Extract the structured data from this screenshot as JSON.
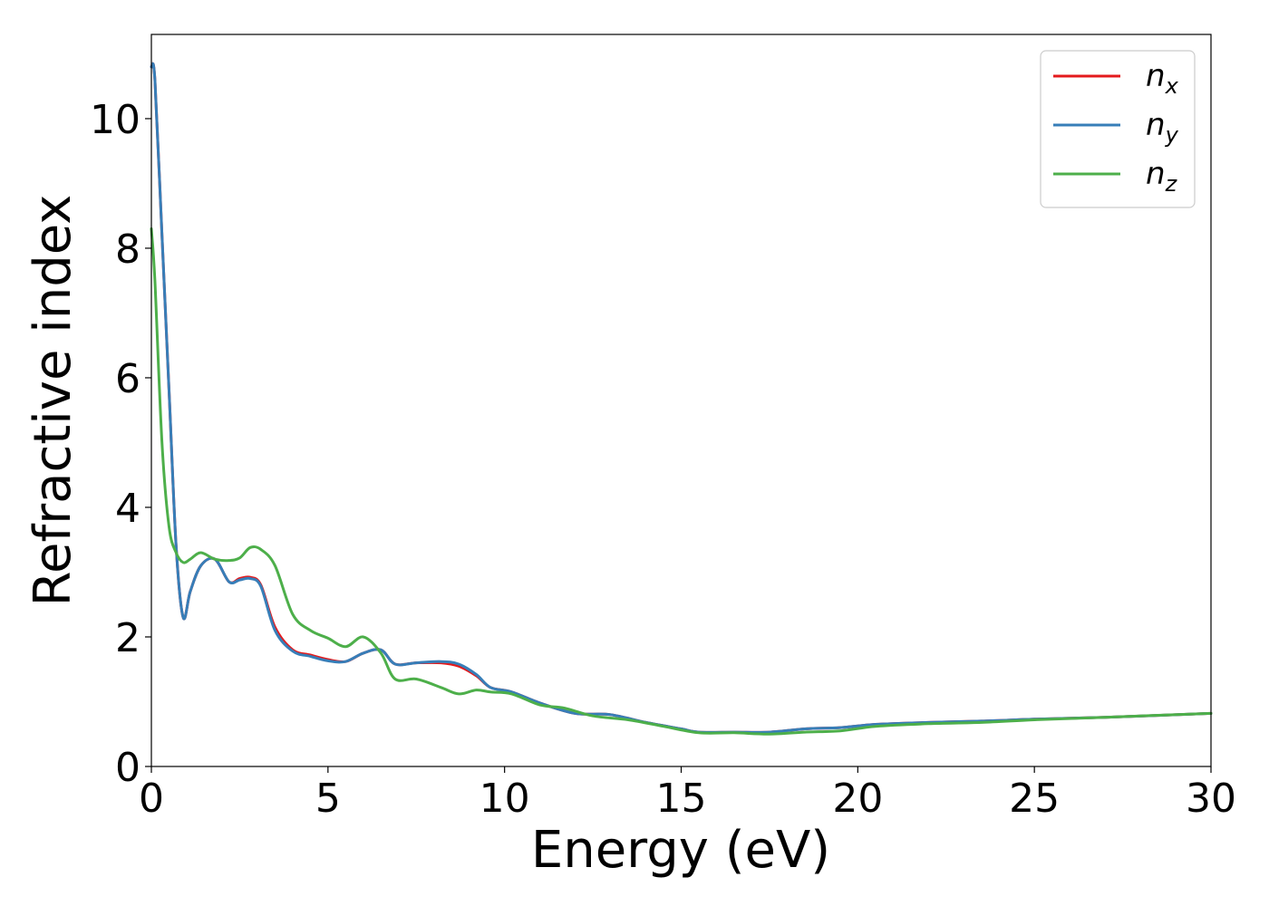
{
  "chart_data": {
    "type": "line",
    "title": "",
    "xlabel": "Energy (eV)",
    "ylabel": "Refractive index",
    "xlim": [
      0,
      30
    ],
    "ylim": [
      0,
      11.3
    ],
    "xticks": [
      0,
      5,
      10,
      15,
      20,
      25,
      30
    ],
    "yticks": [
      0,
      2,
      4,
      6,
      8,
      10
    ],
    "grid": false,
    "legend_position": "top-right",
    "series": [
      {
        "name": "n",
        "subscript": "x",
        "color": "#e41a1c",
        "x": [
          0,
          0.1,
          0.3,
          0.5,
          0.7,
          0.9,
          1.1,
          1.4,
          1.8,
          2.2,
          2.5,
          2.8,
          3.1,
          3.5,
          4.0,
          4.5,
          5.0,
          5.5,
          6.0,
          6.5,
          6.9,
          7.5,
          8.2,
          8.7,
          9.2,
          9.6,
          10.2,
          11.0,
          12.0,
          13.0,
          14.0,
          15.0,
          15.5,
          16.5,
          17.5,
          18.5,
          19.5,
          20.5,
          22.0,
          23.5,
          25.0,
          27.0,
          30.0
        ],
        "y": [
          10.8,
          10.6,
          8.2,
          5.8,
          3.4,
          2.3,
          2.7,
          3.1,
          3.2,
          2.85,
          2.9,
          2.92,
          2.8,
          2.15,
          1.8,
          1.72,
          1.65,
          1.62,
          1.75,
          1.8,
          1.58,
          1.6,
          1.6,
          1.55,
          1.4,
          1.22,
          1.15,
          0.98,
          0.82,
          0.8,
          0.68,
          0.58,
          0.53,
          0.53,
          0.53,
          0.58,
          0.6,
          0.65,
          0.68,
          0.7,
          0.73,
          0.76,
          0.82
        ]
      },
      {
        "name": "n",
        "subscript": "y",
        "color": "#377eb8",
        "x": [
          0,
          0.1,
          0.3,
          0.5,
          0.7,
          0.9,
          1.1,
          1.4,
          1.8,
          2.2,
          2.5,
          2.8,
          3.1,
          3.5,
          4.0,
          4.5,
          5.0,
          5.5,
          6.0,
          6.5,
          6.9,
          7.5,
          8.2,
          8.7,
          9.2,
          9.6,
          10.2,
          11.0,
          12.0,
          13.0,
          14.0,
          15.0,
          15.5,
          16.5,
          17.5,
          18.5,
          19.5,
          20.5,
          22.0,
          23.5,
          25.0,
          27.0,
          30.0
        ],
        "y": [
          10.8,
          10.6,
          8.2,
          5.8,
          3.4,
          2.3,
          2.7,
          3.1,
          3.2,
          2.85,
          2.88,
          2.9,
          2.78,
          2.1,
          1.78,
          1.7,
          1.63,
          1.62,
          1.75,
          1.8,
          1.58,
          1.6,
          1.62,
          1.58,
          1.42,
          1.22,
          1.15,
          0.98,
          0.82,
          0.8,
          0.68,
          0.58,
          0.53,
          0.53,
          0.53,
          0.58,
          0.6,
          0.65,
          0.68,
          0.7,
          0.73,
          0.76,
          0.82
        ]
      },
      {
        "name": "n",
        "subscript": "z",
        "color": "#4daf4a",
        "x": [
          0,
          0.1,
          0.3,
          0.5,
          0.7,
          0.9,
          1.1,
          1.4,
          1.8,
          2.2,
          2.5,
          2.8,
          3.1,
          3.5,
          4.0,
          4.5,
          5.0,
          5.5,
          6.0,
          6.5,
          6.9,
          7.5,
          8.2,
          8.7,
          9.2,
          9.6,
          10.2,
          11.0,
          11.7,
          12.5,
          13.5,
          14.5,
          15.5,
          16.5,
          17.5,
          18.5,
          19.5,
          20.5,
          22.0,
          23.5,
          25.0,
          27.0,
          30.0
        ],
        "y": [
          8.3,
          7.5,
          5.0,
          3.7,
          3.3,
          3.15,
          3.2,
          3.3,
          3.2,
          3.18,
          3.22,
          3.38,
          3.35,
          3.1,
          2.35,
          2.1,
          1.98,
          1.85,
          2.0,
          1.75,
          1.35,
          1.35,
          1.22,
          1.12,
          1.18,
          1.15,
          1.12,
          0.95,
          0.9,
          0.78,
          0.72,
          0.62,
          0.52,
          0.52,
          0.5,
          0.53,
          0.55,
          0.62,
          0.66,
          0.68,
          0.72,
          0.76,
          0.82
        ]
      }
    ]
  }
}
